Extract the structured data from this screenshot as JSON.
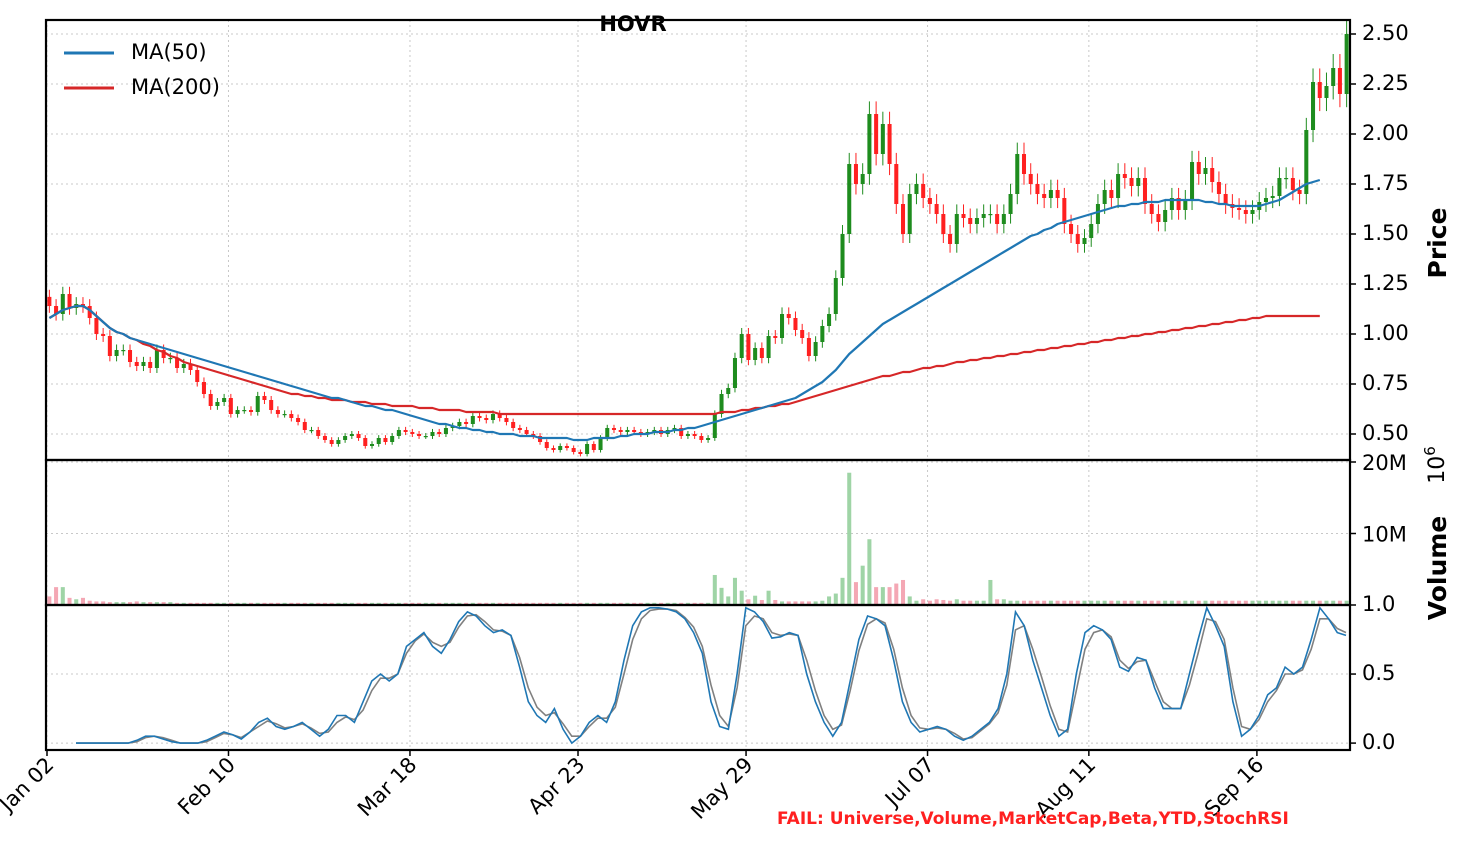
{
  "chart_data": {
    "type": "candlestick",
    "title": "HOVR",
    "x_tick_labels": [
      "Jan 02",
      "Feb 10",
      "Mar 18",
      "Apr 23",
      "May 29",
      "Jul 07",
      "Aug 11",
      "Sep 16"
    ],
    "price_panel": {
      "ylabel": "Price",
      "ylim": [
        0.37,
        2.57
      ],
      "yticks": [
        "0.50",
        "0.75",
        "1.00",
        "1.25",
        "1.50",
        "1.75",
        "2.00",
        "2.25",
        "2.50"
      ],
      "legend": [
        "MA(50)",
        "MA(200)"
      ],
      "legend_position": "top-left",
      "series_colors": {
        "ma50": "#1f77b4",
        "ma200": "#d62728",
        "up": "#1e8c1e",
        "down": "#ff2020"
      },
      "close": [
        1.14,
        1.1,
        1.2,
        1.13,
        1.15,
        1.14,
        1.08,
        1.0,
        0.99,
        0.89,
        0.92,
        0.92,
        0.86,
        0.84,
        0.86,
        0.83,
        0.92,
        0.88,
        0.88,
        0.83,
        0.85,
        0.82,
        0.76,
        0.7,
        0.64,
        0.66,
        0.68,
        0.6,
        0.62,
        0.62,
        0.61,
        0.69,
        0.67,
        0.62,
        0.6,
        0.6,
        0.58,
        0.56,
        0.52,
        0.52,
        0.49,
        0.47,
        0.45,
        0.47,
        0.49,
        0.5,
        0.48,
        0.44,
        0.45,
        0.48,
        0.46,
        0.49,
        0.52,
        0.51,
        0.5,
        0.49,
        0.49,
        0.51,
        0.5,
        0.53,
        0.54,
        0.56,
        0.55,
        0.59,
        0.58,
        0.57,
        0.6,
        0.58,
        0.56,
        0.53,
        0.52,
        0.5,
        0.49,
        0.46,
        0.43,
        0.42,
        0.44,
        0.43,
        0.41,
        0.4,
        0.45,
        0.42,
        0.48,
        0.53,
        0.52,
        0.51,
        0.52,
        0.51,
        0.5,
        0.51,
        0.52,
        0.5,
        0.52,
        0.53,
        0.49,
        0.5,
        0.49,
        0.47,
        0.48,
        0.6,
        0.7,
        0.73,
        0.88,
        1.0,
        0.87,
        0.93,
        0.88,
        0.99,
        0.98,
        1.1,
        1.08,
        1.02,
        0.98,
        0.89,
        0.96,
        1.04,
        1.1,
        1.28,
        1.5,
        1.85,
        1.75,
        1.8,
        2.1,
        1.9,
        2.05,
        1.85,
        1.65,
        1.5,
        1.7,
        1.75,
        1.68,
        1.65,
        1.6,
        1.5,
        1.45,
        1.6,
        1.58,
        1.55,
        1.58,
        1.6,
        1.6,
        1.55,
        1.6,
        1.7,
        1.9,
        1.8,
        1.75,
        1.7,
        1.68,
        1.72,
        1.68,
        1.55,
        1.5,
        1.45,
        1.48,
        1.55,
        1.65,
        1.72,
        1.68,
        1.8,
        1.78,
        1.74,
        1.78,
        1.65,
        1.6,
        1.56,
        1.62,
        1.68,
        1.62,
        1.67,
        1.86,
        1.8,
        1.83,
        1.76,
        1.7,
        1.65,
        1.63,
        1.62,
        1.6,
        1.62,
        1.66,
        1.68,
        1.69,
        1.78,
        1.78,
        1.72,
        1.7,
        2.02,
        2.26,
        2.18,
        2.24,
        2.33,
        2.2,
        2.5
      ],
      "ma50": [
        1.08,
        1.1,
        1.12,
        1.13,
        1.14,
        1.14,
        1.12,
        1.09,
        1.06,
        1.03,
        1.01,
        1.0,
        0.98,
        0.97,
        0.96,
        0.95,
        0.94,
        0.93,
        0.92,
        0.91,
        0.9,
        0.89,
        0.88,
        0.87,
        0.86,
        0.85,
        0.84,
        0.83,
        0.82,
        0.81,
        0.8,
        0.79,
        0.78,
        0.77,
        0.76,
        0.75,
        0.74,
        0.73,
        0.72,
        0.71,
        0.7,
        0.69,
        0.68,
        0.68,
        0.67,
        0.66,
        0.65,
        0.64,
        0.64,
        0.63,
        0.62,
        0.62,
        0.61,
        0.6,
        0.59,
        0.58,
        0.57,
        0.56,
        0.55,
        0.55,
        0.54,
        0.53,
        0.53,
        0.52,
        0.52,
        0.51,
        0.51,
        0.5,
        0.5,
        0.5,
        0.49,
        0.49,
        0.49,
        0.48,
        0.48,
        0.48,
        0.48,
        0.48,
        0.47,
        0.47,
        0.47,
        0.48,
        0.48,
        0.48,
        0.48,
        0.49,
        0.49,
        0.5,
        0.5,
        0.5,
        0.51,
        0.51,
        0.51,
        0.52,
        0.52,
        0.53,
        0.53,
        0.54,
        0.55,
        0.56,
        0.57,
        0.58,
        0.59,
        0.6,
        0.61,
        0.62,
        0.63,
        0.64,
        0.65,
        0.66,
        0.67,
        0.68,
        0.7,
        0.72,
        0.74,
        0.76,
        0.79,
        0.82,
        0.86,
        0.9,
        0.93,
        0.96,
        0.99,
        1.02,
        1.05,
        1.07,
        1.09,
        1.11,
        1.13,
        1.15,
        1.17,
        1.19,
        1.21,
        1.23,
        1.25,
        1.27,
        1.29,
        1.31,
        1.33,
        1.35,
        1.37,
        1.39,
        1.41,
        1.43,
        1.45,
        1.47,
        1.49,
        1.5,
        1.52,
        1.53,
        1.55,
        1.56,
        1.57,
        1.58,
        1.59,
        1.6,
        1.61,
        1.62,
        1.63,
        1.64,
        1.64,
        1.65,
        1.65,
        1.66,
        1.66,
        1.66,
        1.67,
        1.67,
        1.67,
        1.67,
        1.67,
        1.67,
        1.66,
        1.66,
        1.65,
        1.65,
        1.64,
        1.64,
        1.64,
        1.64,
        1.64,
        1.65,
        1.66,
        1.67,
        1.69,
        1.71,
        1.73,
        1.75,
        1.76,
        1.77
      ],
      "ma200": [
        1.08,
        1.1,
        1.12,
        1.13,
        1.14,
        1.14,
        1.12,
        1.09,
        1.06,
        1.03,
        1.01,
        1.0,
        0.98,
        0.97,
        0.95,
        0.94,
        0.92,
        0.91,
        0.89,
        0.88,
        0.86,
        0.85,
        0.84,
        0.83,
        0.82,
        0.81,
        0.8,
        0.79,
        0.78,
        0.77,
        0.76,
        0.75,
        0.74,
        0.73,
        0.72,
        0.71,
        0.7,
        0.7,
        0.69,
        0.69,
        0.68,
        0.68,
        0.67,
        0.67,
        0.67,
        0.66,
        0.66,
        0.66,
        0.65,
        0.65,
        0.65,
        0.64,
        0.64,
        0.64,
        0.64,
        0.63,
        0.63,
        0.63,
        0.62,
        0.62,
        0.62,
        0.62,
        0.61,
        0.61,
        0.61,
        0.61,
        0.61,
        0.6,
        0.6,
        0.6,
        0.6,
        0.6,
        0.6,
        0.6,
        0.6,
        0.6,
        0.6,
        0.6,
        0.6,
        0.6,
        0.6,
        0.6,
        0.6,
        0.6,
        0.6,
        0.6,
        0.6,
        0.6,
        0.6,
        0.6,
        0.6,
        0.6,
        0.6,
        0.6,
        0.6,
        0.6,
        0.6,
        0.6,
        0.6,
        0.6,
        0.61,
        0.61,
        0.61,
        0.62,
        0.62,
        0.63,
        0.63,
        0.64,
        0.64,
        0.65,
        0.65,
        0.66,
        0.67,
        0.68,
        0.69,
        0.7,
        0.71,
        0.72,
        0.73,
        0.74,
        0.75,
        0.76,
        0.77,
        0.78,
        0.79,
        0.79,
        0.8,
        0.81,
        0.81,
        0.82,
        0.83,
        0.83,
        0.84,
        0.84,
        0.85,
        0.86,
        0.86,
        0.87,
        0.87,
        0.88,
        0.88,
        0.89,
        0.89,
        0.9,
        0.9,
        0.91,
        0.91,
        0.92,
        0.92,
        0.93,
        0.93,
        0.94,
        0.94,
        0.95,
        0.95,
        0.96,
        0.96,
        0.97,
        0.97,
        0.98,
        0.98,
        0.99,
        0.99,
        1.0,
        1.0,
        1.01,
        1.01,
        1.02,
        1.02,
        1.03,
        1.03,
        1.04,
        1.04,
        1.05,
        1.05,
        1.06,
        1.06,
        1.07,
        1.07,
        1.08,
        1.08,
        1.09,
        1.09,
        1.09,
        1.09,
        1.09,
        1.09,
        1.09,
        1.09,
        1.09
      ]
    },
    "volume_panel": {
      "ylabel": "Volume",
      "offset_label": "10^6",
      "yticks": [
        "10M",
        "20M"
      ],
      "ylim": [
        0,
        20000000
      ],
      "volume": [
        1.2,
        2.5,
        2.5,
        1.0,
        0.8,
        1.0,
        0.6,
        0.5,
        0.5,
        0.4,
        0.4,
        0.4,
        0.4,
        0.5,
        0.4,
        0.4,
        0.4,
        0.4,
        0.4,
        0.3,
        0.3,
        0.3,
        0.3,
        0.3,
        0.3,
        0.3,
        0.3,
        0.3,
        0.3,
        0.3,
        0.3,
        0.3,
        0.3,
        0.3,
        0.3,
        0.3,
        0.3,
        0.3,
        0.3,
        0.3,
        0.3,
        0.3,
        0.3,
        0.3,
        0.3,
        0.3,
        0.3,
        0.3,
        0.3,
        0.3,
        0.3,
        0.3,
        0.3,
        0.3,
        0.3,
        0.3,
        0.3,
        0.3,
        0.3,
        0.3,
        0.3,
        0.3,
        0.3,
        0.3,
        0.3,
        0.3,
        0.3,
        0.3,
        0.3,
        0.3,
        0.3,
        0.3,
        0.3,
        0.3,
        0.3,
        0.3,
        0.3,
        0.3,
        0.3,
        0.3,
        0.3,
        0.3,
        0.3,
        0.3,
        0.3,
        0.3,
        0.3,
        0.3,
        0.3,
        0.3,
        0.3,
        0.3,
        0.3,
        0.3,
        0.3,
        0.3,
        0.3,
        0.3,
        0.3,
        4.2,
        2.4,
        1.2,
        3.8,
        2.0,
        0.8,
        1.3,
        0.7,
        2.0,
        0.7,
        0.5,
        0.5,
        0.5,
        0.5,
        0.5,
        0.5,
        0.6,
        1.2,
        1.6,
        3.8,
        18.5,
        3.2,
        5.5,
        9.2,
        2.5,
        2.5,
        2.5,
        3.0,
        3.5,
        1.2,
        0.6,
        0.8,
        0.6,
        0.8,
        0.7,
        0.6,
        0.8,
        0.6,
        0.6,
        0.6,
        0.6,
        3.5,
        0.8,
        0.8,
        0.6,
        0.6,
        0.6,
        0.6,
        0.6,
        0.6,
        0.6,
        0.6,
        0.6,
        0.6,
        0.6,
        0.6,
        0.6,
        0.6,
        0.6,
        0.6,
        0.6,
        0.6,
        0.6,
        0.6,
        0.6,
        0.6,
        0.6,
        0.6,
        0.6,
        0.6,
        0.6,
        0.6,
        0.6,
        0.6,
        0.6,
        0.6,
        0.6,
        0.6,
        0.6,
        0.6,
        0.6,
        0.6,
        0.6,
        0.6,
        0.6,
        0.6,
        0.6,
        0.6,
        0.6,
        0.6,
        0.6,
        0.6,
        0.6,
        0.6,
        0.6,
        0.6,
        0.6,
        4.5,
        2.0,
        1.2,
        1.2,
        1.2,
        1.2
      ],
      "volume_units": "millions"
    },
    "stochrsi_panel": {
      "yticks": [
        "0.0",
        "0.5",
        "1.0"
      ],
      "ylim": [
        -0.05,
        1.0
      ],
      "k": [
        0.0,
        0.0,
        0.0,
        0.0,
        0.0,
        0.0,
        0.0,
        0.02,
        0.05,
        0.05,
        0.03,
        0.01,
        0.0,
        0.0,
        0.0,
        0.02,
        0.05,
        0.08,
        0.06,
        0.03,
        0.08,
        0.15,
        0.18,
        0.12,
        0.1,
        0.12,
        0.15,
        0.1,
        0.05,
        0.1,
        0.2,
        0.2,
        0.15,
        0.3,
        0.45,
        0.5,
        0.45,
        0.5,
        0.7,
        0.75,
        0.8,
        0.7,
        0.65,
        0.75,
        0.88,
        0.95,
        0.92,
        0.85,
        0.8,
        0.82,
        0.78,
        0.55,
        0.3,
        0.2,
        0.15,
        0.25,
        0.1,
        0.0,
        0.05,
        0.15,
        0.2,
        0.15,
        0.3,
        0.6,
        0.85,
        0.95,
        0.98,
        0.98,
        0.97,
        0.95,
        0.9,
        0.8,
        0.65,
        0.3,
        0.12,
        0.1,
        0.5,
        0.98,
        0.95,
        0.88,
        0.76,
        0.77,
        0.8,
        0.78,
        0.5,
        0.3,
        0.15,
        0.05,
        0.15,
        0.45,
        0.75,
        0.92,
        0.9,
        0.85,
        0.6,
        0.3,
        0.15,
        0.08,
        0.1,
        0.12,
        0.1,
        0.05,
        0.02,
        0.05,
        0.1,
        0.15,
        0.25,
        0.5,
        0.95,
        0.85,
        0.6,
        0.4,
        0.2,
        0.05,
        0.1,
        0.5,
        0.8,
        0.85,
        0.82,
        0.75,
        0.55,
        0.52,
        0.62,
        0.6,
        0.4,
        0.25,
        0.25,
        0.25,
        0.5,
        0.75,
        0.98,
        0.85,
        0.7,
        0.3,
        0.05,
        0.1,
        0.2,
        0.35,
        0.4,
        0.55,
        0.5,
        0.55,
        0.75,
        0.98,
        0.9,
        0.8,
        0.78
      ],
      "d": [
        0.0,
        0.0,
        0.0,
        0.0,
        0.0,
        0.0,
        0.0,
        0.01,
        0.04,
        0.05,
        0.04,
        0.02,
        0.0,
        0.0,
        0.0,
        0.01,
        0.04,
        0.07,
        0.06,
        0.04,
        0.08,
        0.12,
        0.16,
        0.14,
        0.11,
        0.12,
        0.14,
        0.11,
        0.07,
        0.08,
        0.15,
        0.19,
        0.17,
        0.24,
        0.38,
        0.47,
        0.47,
        0.5,
        0.65,
        0.74,
        0.79,
        0.73,
        0.7,
        0.73,
        0.84,
        0.92,
        0.93,
        0.88,
        0.82,
        0.81,
        0.78,
        0.62,
        0.4,
        0.26,
        0.2,
        0.22,
        0.14,
        0.05,
        0.05,
        0.12,
        0.18,
        0.18,
        0.26,
        0.5,
        0.75,
        0.9,
        0.96,
        0.97,
        0.97,
        0.96,
        0.91,
        0.84,
        0.7,
        0.42,
        0.2,
        0.12,
        0.4,
        0.85,
        0.92,
        0.9,
        0.8,
        0.78,
        0.79,
        0.78,
        0.6,
        0.38,
        0.2,
        0.1,
        0.13,
        0.38,
        0.67,
        0.86,
        0.9,
        0.87,
        0.68,
        0.4,
        0.2,
        0.11,
        0.1,
        0.11,
        0.1,
        0.07,
        0.03,
        0.04,
        0.09,
        0.14,
        0.22,
        0.42,
        0.82,
        0.85,
        0.68,
        0.48,
        0.27,
        0.1,
        0.08,
        0.38,
        0.68,
        0.8,
        0.82,
        0.77,
        0.6,
        0.54,
        0.59,
        0.6,
        0.45,
        0.3,
        0.25,
        0.25,
        0.42,
        0.65,
        0.9,
        0.88,
        0.75,
        0.4,
        0.12,
        0.1,
        0.17,
        0.3,
        0.38,
        0.5,
        0.5,
        0.53,
        0.68,
        0.9,
        0.9,
        0.83,
        0.8
      ],
      "series_colors": {
        "k": "#1f77b4",
        "d": "#808080"
      }
    },
    "status_annotation": "FAIL: Universe,Volume,MarketCap,Beta,YTD,StochRSI"
  }
}
